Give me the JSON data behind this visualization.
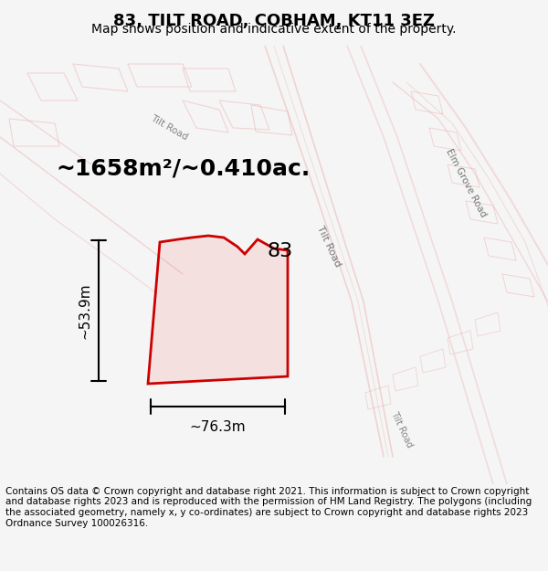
{
  "title": "83, TILT ROAD, COBHAM, KT11 3EZ",
  "subtitle": "Map shows position and indicative extent of the property.",
  "footer": "Contains OS data © Crown copyright and database right 2021. This information is subject to Crown copyright and database rights 2023 and is reproduced with the permission of HM Land Registry. The polygons (including the associated geometry, namely x, y co-ordinates) are subject to Crown copyright and database rights 2023 Ordnance Survey 100026316.",
  "area_label": "~1658m²/~0.410ac.",
  "width_label": "~76.3m",
  "height_label": "~53.9m",
  "parcel_label": "83",
  "bg_color": "#f5f5f5",
  "map_bg": "#ffffff",
  "road_color": "#d9d9d9",
  "building_fill": "#e8e8e8",
  "building_edge": "#c8c8c8",
  "red_line": "#cc0000",
  "pink_line": "#e8a0a0",
  "title_fontsize": 13,
  "subtitle_fontsize": 10,
  "footer_fontsize": 7.5,
  "area_fontsize": 18,
  "dim_fontsize": 11,
  "parcel_fontsize": 16
}
